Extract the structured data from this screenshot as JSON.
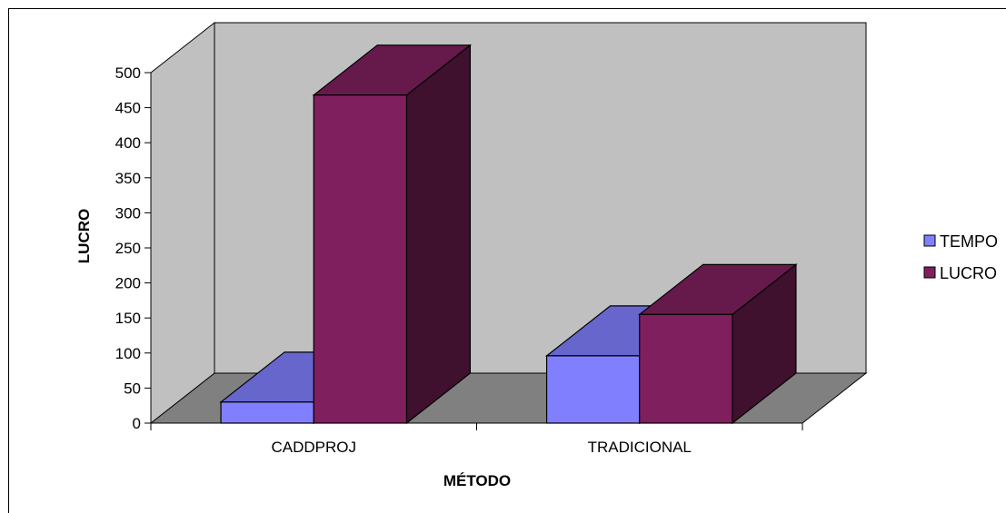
{
  "chart_data": {
    "type": "bar",
    "title": "",
    "xlabel": "MÉTODO",
    "ylabel": "LUCRO",
    "ylim": [
      0,
      500
    ],
    "yticks": [
      0,
      50,
      100,
      150,
      200,
      250,
      300,
      350,
      400,
      450,
      500
    ],
    "categories": [
      "CADDPROJ",
      "TRADICIONAL"
    ],
    "series": [
      {
        "name": "TEMPO",
        "values": [
          30,
          96
        ]
      },
      {
        "name": "LUCRO",
        "values": [
          468,
          155
        ]
      }
    ],
    "legend_position": "right",
    "three_d": true,
    "grid": false
  },
  "colors": {
    "tempo_front": "#8080ff",
    "tempo_top": "#6666cc",
    "tempo_side": "#404080",
    "lucro_front": "#801f5e",
    "lucro_top": "#661a4b",
    "lucro_side": "#40102f",
    "back_wall": "#c0c0c0",
    "side_wall": "#c0c0c0",
    "floor": "#808080"
  }
}
